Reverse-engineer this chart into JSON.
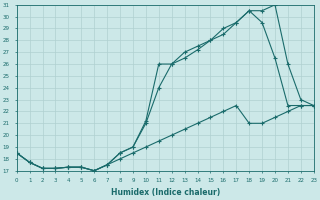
{
  "xlabel": "Humidex (Indice chaleur)",
  "bg_color": "#cce8e8",
  "grid_color": "#b0d0d0",
  "line_color": "#1a6b6b",
  "xlim": [
    0,
    23
  ],
  "ylim": [
    17,
    31
  ],
  "yticks": [
    17,
    18,
    19,
    20,
    21,
    22,
    23,
    24,
    25,
    26,
    27,
    28,
    29,
    30,
    31
  ],
  "xticks": [
    0,
    1,
    2,
    3,
    4,
    5,
    6,
    7,
    8,
    9,
    10,
    11,
    12,
    13,
    14,
    15,
    16,
    17,
    18,
    19,
    20,
    21,
    22,
    23
  ],
  "line1_x": [
    0,
    1,
    2,
    3,
    4,
    5,
    6,
    7,
    8,
    9,
    10,
    11,
    12,
    13,
    14,
    15,
    16,
    17,
    18,
    19,
    20,
    21,
    22,
    23
  ],
  "line1_y": [
    18.5,
    17.7,
    17.2,
    17.2,
    17.3,
    17.3,
    17.0,
    17.5,
    18.5,
    19.0,
    21.2,
    26.0,
    26.0,
    27.0,
    27.5,
    28.0,
    28.5,
    29.5,
    30.5,
    30.5,
    31.0,
    26.0,
    23.0,
    22.5
  ],
  "line2_x": [
    0,
    1,
    2,
    3,
    4,
    5,
    6,
    7,
    8,
    9,
    10,
    11,
    12,
    13,
    14,
    15,
    16,
    17,
    18,
    19,
    20,
    21,
    22,
    23
  ],
  "line2_y": [
    18.5,
    17.7,
    17.2,
    17.2,
    17.3,
    17.3,
    17.0,
    17.5,
    18.5,
    19.0,
    21.0,
    24.0,
    26.0,
    26.5,
    27.2,
    28.0,
    29.0,
    29.5,
    30.5,
    29.5,
    26.5,
    22.5,
    22.5,
    22.5
  ],
  "line3_x": [
    0,
    1,
    2,
    3,
    4,
    5,
    6,
    7,
    8,
    9,
    10,
    11,
    12,
    13,
    14,
    15,
    16,
    17,
    18,
    19,
    20,
    21,
    22,
    23
  ],
  "line3_y": [
    18.5,
    17.7,
    17.2,
    17.2,
    17.3,
    17.3,
    17.0,
    17.5,
    18.0,
    18.5,
    19.0,
    19.5,
    20.0,
    20.5,
    21.0,
    21.5,
    22.0,
    22.5,
    21.0,
    21.0,
    21.5,
    22.0,
    22.5,
    22.5
  ]
}
